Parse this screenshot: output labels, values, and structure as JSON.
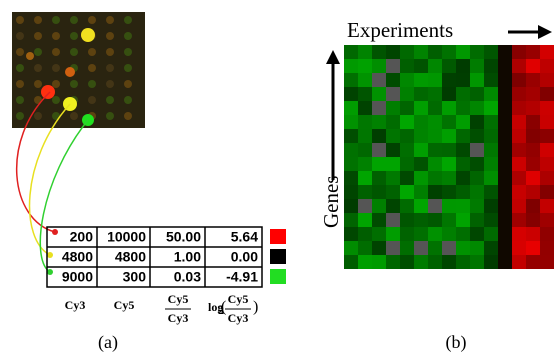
{
  "panel_a": {
    "label": "(a)",
    "table": {
      "rows": [
        [
          "200",
          "10000",
          "50.00",
          "5.64"
        ],
        [
          "4800",
          "4800",
          "1.00",
          "0.00"
        ],
        [
          "9000",
          "300",
          "0.03",
          "-4.91"
        ]
      ]
    },
    "columns": [
      {
        "label": "Cy3"
      },
      {
        "label": "Cy5"
      },
      {
        "numerator": "Cy5",
        "denominator": "Cy3"
      },
      {
        "prefix": "log",
        "subscript": "2",
        "numerator": "Cy5",
        "denominator": "Cy3"
      }
    ]
  },
  "panel_b": {
    "label": "(b)",
    "x_label": "Experiments",
    "y_label": "Genes"
  }
}
